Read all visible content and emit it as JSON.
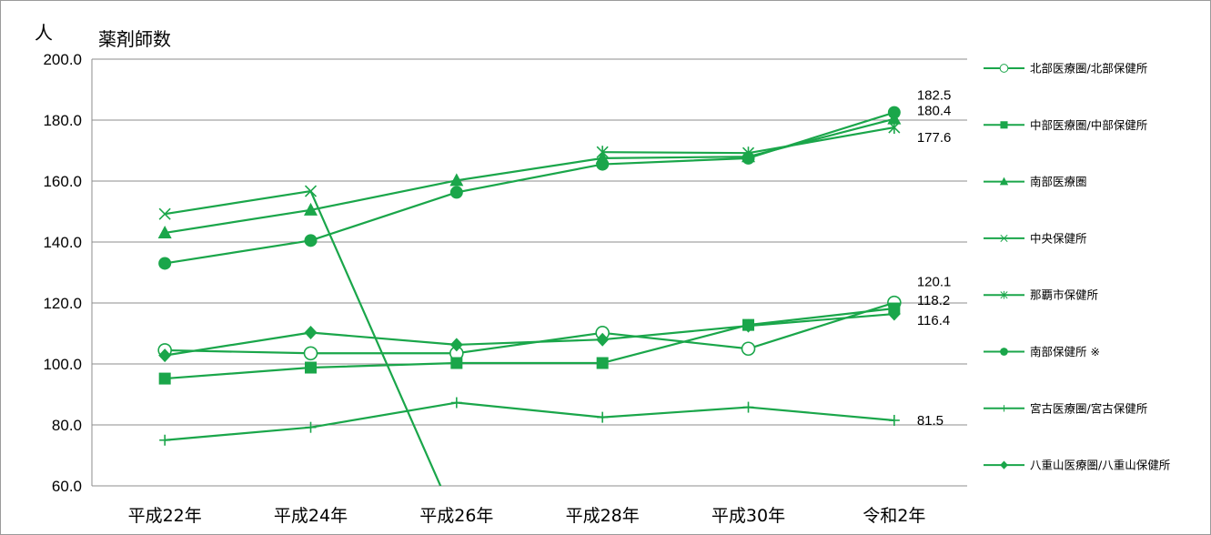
{
  "chart_data": {
    "type": "line",
    "title": "薬剤師数",
    "ylabel": "人",
    "xlabel": "",
    "categories": [
      "平成22年",
      "平成24年",
      "平成26年",
      "平成28年",
      "平成30年",
      "令和2年"
    ],
    "ylim": [
      60,
      200
    ],
    "yticks": [
      "60.0",
      "80.0",
      "100.0",
      "120.0",
      "140.0",
      "160.0",
      "180.0",
      "200.0"
    ],
    "grid": "horizontal",
    "legend_position": "right",
    "line_color": "#1aa64a",
    "series": [
      {
        "name": "北部医療圏/北部保健所",
        "marker": "open-circle",
        "values": [
          104.5,
          103.5,
          103.5,
          110.2,
          105.0,
          120.1
        ]
      },
      {
        "name": "中部医療圏/中部保健所",
        "marker": "square",
        "values": [
          95.2,
          98.8,
          100.3,
          100.3,
          112.8,
          118.2
        ]
      },
      {
        "name": "南部医療圏",
        "marker": "triangle",
        "values": [
          143.0,
          150.5,
          160.2,
          167.5,
          168.0,
          180.4
        ]
      },
      {
        "name": "中央保健所",
        "marker": "x",
        "values": [
          149.2,
          156.7,
          48.0,
          null,
          null,
          null
        ]
      },
      {
        "name": "那覇市保健所",
        "marker": "asterisk",
        "values": [
          null,
          null,
          null,
          169.5,
          169.2,
          177.6
        ]
      },
      {
        "name": "南部保健所 ※",
        "marker": "filled-circle",
        "values": [
          133.0,
          140.5,
          156.3,
          165.5,
          167.5,
          182.5
        ]
      },
      {
        "name": "宮古医療圏/宮古保健所",
        "marker": "plus",
        "values": [
          75.0,
          79.2,
          87.3,
          82.5,
          85.8,
          81.5
        ]
      },
      {
        "name": "八重山医療圏/八重山保健所",
        "marker": "diamond",
        "values": [
          102.8,
          110.3,
          106.3,
          108.0,
          112.5,
          116.4
        ]
      }
    ],
    "data_labels": [
      {
        "series": 5,
        "index": 5,
        "text": "182.5"
      },
      {
        "series": 2,
        "index": 5,
        "text": "180.4"
      },
      {
        "series": 4,
        "index": 5,
        "text": "177.6"
      },
      {
        "series": 0,
        "index": 5,
        "text": "120.1"
      },
      {
        "series": 1,
        "index": 5,
        "text": "118.2"
      },
      {
        "series": 7,
        "index": 5,
        "text": "116.4"
      },
      {
        "series": 6,
        "index": 5,
        "text": "81.5"
      }
    ]
  }
}
